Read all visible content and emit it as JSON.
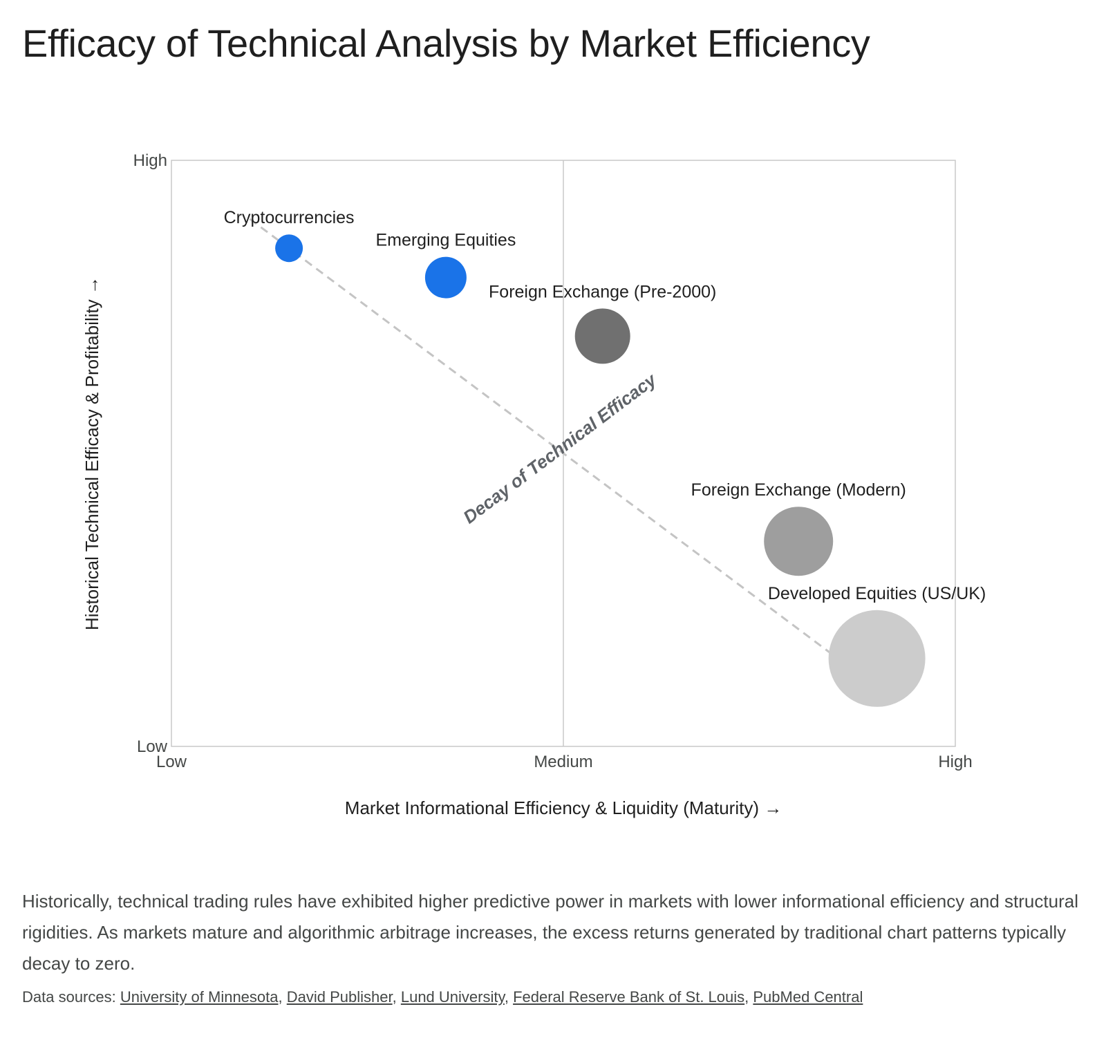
{
  "title": "Efficacy of Technical Analysis by Market Efficiency",
  "description": "Historically, technical trading rules have exhibited higher predictive power in markets with lower informational efficiency and structural rigidities. As markets mature and algorithmic arbitrage increases, the excess returns generated by traditional chart patterns typically decay to zero.",
  "sources": {
    "prefix": "Data sources: ",
    "links": [
      "University of Minnesota",
      "David Publisher",
      "Lund University",
      "Federal Reserve Bank of St. Louis",
      "PubMed Central"
    ]
  },
  "chart_data": {
    "type": "scatter",
    "xlabel": "Market Informational Efficiency & Liquidity (Maturity) →",
    "ylabel": "Historical Technical Efficacy & Profitability →",
    "xlim": [
      0,
      100
    ],
    "ylim": [
      0,
      100
    ],
    "x_ticks": [
      {
        "value": 0,
        "label": "Low"
      },
      {
        "value": 50,
        "label": "Medium"
      },
      {
        "value": 100,
        "label": "High"
      }
    ],
    "y_ticks": [
      {
        "value": 0,
        "label": "Low"
      },
      {
        "value": 100,
        "label": "High"
      }
    ],
    "grid": false,
    "midline_x": 50,
    "points": [
      {
        "label": "Cryptocurrencies",
        "x": 15,
        "y": 85,
        "size": 1.0,
        "color": "#1a73e8"
      },
      {
        "label": "Emerging Equities",
        "x": 35,
        "y": 80,
        "size": 1.5,
        "color": "#1a73e8"
      },
      {
        "label": "Foreign Exchange (Pre-2000)",
        "x": 55,
        "y": 70,
        "size": 2.0,
        "color": "#707070"
      },
      {
        "label": "Foreign Exchange (Modern)",
        "x": 80,
        "y": 35,
        "size": 2.5,
        "color": "#9e9e9e"
      },
      {
        "label": "Developed Equities (US/UK)",
        "x": 90,
        "y": 15,
        "size": 3.5,
        "color": "#cccccc"
      }
    ],
    "trend_line": {
      "from": [
        10,
        90
      ],
      "to": [
        85,
        15
      ],
      "style": "dashed",
      "color": "#c4c4c4"
    },
    "annotation": {
      "text": "Decay of Technical Efficacy",
      "x": 50,
      "y": 50
    }
  }
}
